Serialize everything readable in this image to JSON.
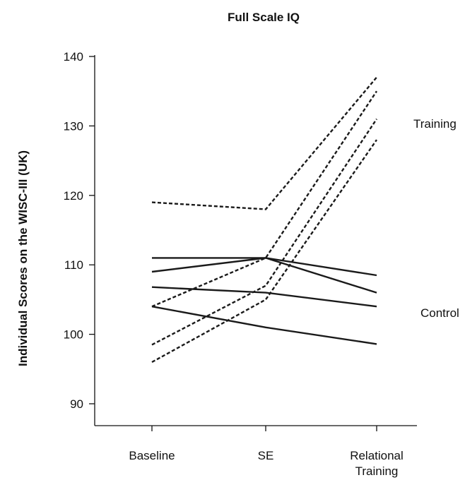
{
  "chart_data": {
    "type": "line",
    "title": "Full Scale IQ",
    "ylabel": "Individual Scores on the WISC-III (UK)",
    "xlabel": "",
    "categories": [
      "Baseline",
      "SE",
      "Relational Training"
    ],
    "ylim": [
      87,
      140
    ],
    "yticks": [
      90,
      100,
      110,
      120,
      130,
      140
    ],
    "grid": false,
    "group_labels": {
      "training": "Training",
      "control": "Control"
    },
    "series": [
      {
        "group": "training",
        "style": "dashed",
        "values": [
          119,
          118,
          137
        ]
      },
      {
        "group": "training",
        "style": "dashed",
        "values": [
          104,
          111,
          135
        ]
      },
      {
        "group": "training",
        "style": "dashed",
        "values": [
          98.5,
          107,
          131
        ]
      },
      {
        "group": "training",
        "style": "dashed",
        "values": [
          96,
          105,
          128
        ]
      },
      {
        "group": "control",
        "style": "solid",
        "values": [
          111,
          111,
          108.5
        ]
      },
      {
        "group": "control",
        "style": "solid",
        "values": [
          109,
          111,
          106
        ]
      },
      {
        "group": "control",
        "style": "solid",
        "values": [
          106.8,
          106,
          104
        ]
      },
      {
        "group": "control",
        "style": "solid",
        "values": [
          104,
          101,
          98.6
        ]
      }
    ]
  }
}
